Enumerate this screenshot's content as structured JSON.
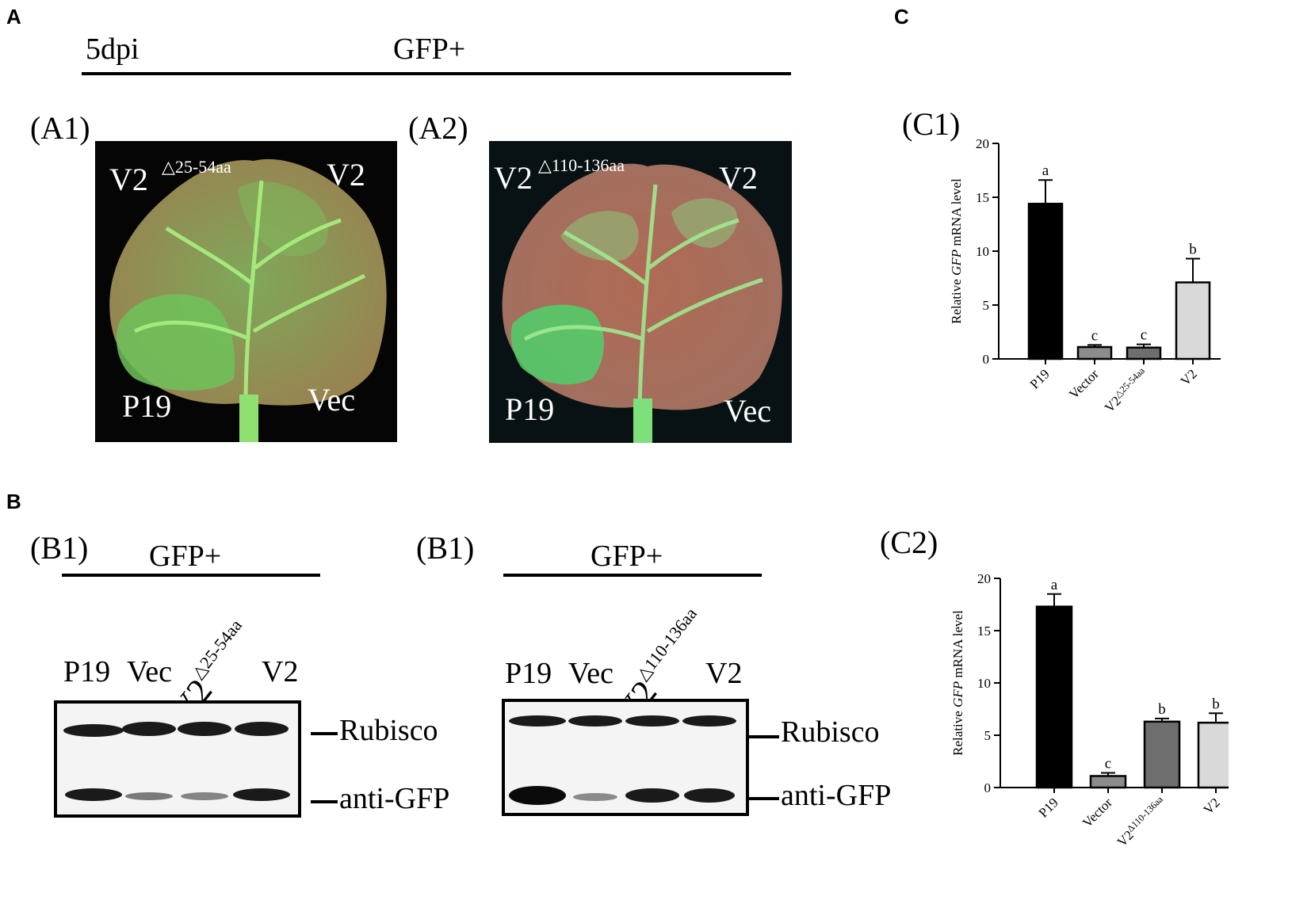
{
  "panels": {
    "A": "A",
    "B": "B",
    "C": "C"
  },
  "panel_a": {
    "timepoint": "5dpi",
    "condition": "GFP+",
    "sub1": "(A1)",
    "sub2": "(A2)",
    "leaf1": {
      "tl": "V2",
      "tl_sup": "△25-54aa",
      "tr": "V2",
      "bl": "P19",
      "br": "Vec"
    },
    "leaf2": {
      "tl": "V2",
      "tl_sup": "△110-136aa",
      "tr": "V2",
      "bl": "P19",
      "br": "Vec"
    }
  },
  "panel_b": {
    "left": {
      "sub": "(B1)",
      "condition": "GFP+",
      "lanes": [
        "P19",
        "Vec",
        "V2",
        "V2"
      ],
      "rot_sup": "△25-54aa",
      "bands": [
        "Rubisco",
        "anti-GFP"
      ]
    },
    "right": {
      "sub": "(B1)",
      "condition": "GFP+",
      "lanes": [
        "P19",
        "Vec",
        "V2",
        "V2"
      ],
      "rot_sup": "△110-136aa",
      "bands": [
        "Rubisco",
        "anti-GFP"
      ]
    }
  },
  "chart_data": [
    {
      "type": "bar",
      "panel": "(C1)",
      "categories": [
        "P19",
        "Vector",
        "V2△25-54aa",
        "V2"
      ],
      "cat_main": [
        "P19",
        "Vector",
        "V2",
        "V2"
      ],
      "cat_sup": [
        "",
        "",
        "△25-54aa",
        ""
      ],
      "values": [
        14.4,
        1.1,
        1.05,
        7.1
      ],
      "errors": [
        2.2,
        0.2,
        0.3,
        2.2
      ],
      "letters": [
        "a",
        "c",
        "c",
        "b"
      ],
      "colors": [
        "#000000",
        "#8c8c8c",
        "#6e6e6e",
        "#d9d9d9"
      ],
      "ylabel_pre": "Relative ",
      "ylabel_italic": "GFP",
      "ylabel_post": " mRNA  level",
      "ylim": [
        0,
        20
      ],
      "yticks": [
        "0",
        "5",
        "10",
        "15",
        "20"
      ]
    },
    {
      "type": "bar",
      "panel": "(C2)",
      "categories": [
        "P19",
        "Vector",
        "V2△110-136aa",
        "V2"
      ],
      "cat_main": [
        "P19",
        "Vector",
        "V2",
        "V2"
      ],
      "cat_sup": [
        "",
        "",
        "Δ110-136aa",
        ""
      ],
      "values": [
        17.3,
        1.1,
        6.3,
        6.2
      ],
      "errors": [
        1.2,
        0.3,
        0.3,
        0.9
      ],
      "letters": [
        "a",
        "c",
        "b",
        "b"
      ],
      "colors": [
        "#000000",
        "#8c8c8c",
        "#6e6e6e",
        "#d9d9d9"
      ],
      "ylabel_pre": "Relative ",
      "ylabel_italic": "GFP",
      "ylabel_post": " mRNA  level",
      "ylim": [
        0,
        20
      ],
      "yticks": [
        "0",
        "5",
        "10",
        "15",
        "20"
      ]
    }
  ]
}
